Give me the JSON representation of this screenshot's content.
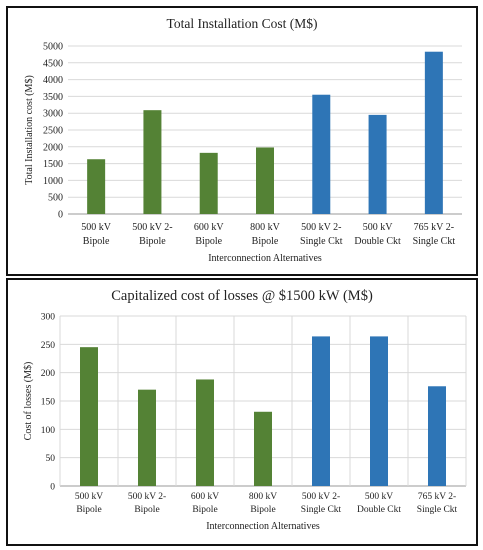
{
  "chart_data": [
    {
      "type": "bar",
      "title": "Total Installation Cost (M$)",
      "xlabel": "Interconnection Alternatives",
      "ylabel": "Total Installation cost (M$)",
      "ylim": [
        0,
        5000
      ],
      "yticks": [
        0,
        500,
        1000,
        1500,
        2000,
        2500,
        3000,
        3500,
        4000,
        4500,
        5000
      ],
      "grid": "horizontal",
      "categories": [
        [
          "500 kV",
          "Bipole"
        ],
        [
          "500 kV 2-",
          "Bipole"
        ],
        [
          "600 kV",
          "Bipole"
        ],
        [
          "800 kV",
          "Bipole"
        ],
        [
          "500 kV 2-",
          "Single Ckt"
        ],
        [
          "500 kV",
          "Double Ckt"
        ],
        [
          "765 kV 2-",
          "Single Ckt"
        ]
      ],
      "values": [
        1630,
        3090,
        1820,
        1980,
        3550,
        2950,
        4830
      ],
      "bar_colors": [
        "#548235",
        "#548235",
        "#548235",
        "#548235",
        "#2e75b6",
        "#2e75b6",
        "#2e75b6"
      ]
    },
    {
      "type": "bar",
      "title": "Capitalized cost of losses @ $1500 kW (M$)",
      "xlabel": "Interconnection Alternatives",
      "ylabel": "Cost of losses (M$)",
      "ylim": [
        0,
        300
      ],
      "yticks": [
        0,
        50,
        100,
        150,
        200,
        250,
        300
      ],
      "grid": "both",
      "categories": [
        [
          "500 kV",
          "Bipole"
        ],
        [
          "500 kV 2-",
          "Bipole"
        ],
        [
          "600 kV",
          "Bipole"
        ],
        [
          "800 kV",
          "Bipole"
        ],
        [
          "500 kV 2-",
          "Single Ckt"
        ],
        [
          "500 kV",
          "Double Ckt"
        ],
        [
          "765 kV 2-",
          "Single Ckt"
        ]
      ],
      "values": [
        245,
        170,
        188,
        131,
        264,
        264,
        176
      ],
      "bar_colors": [
        "#548235",
        "#548235",
        "#548235",
        "#548235",
        "#2e75b6",
        "#2e75b6",
        "#2e75b6"
      ]
    }
  ]
}
